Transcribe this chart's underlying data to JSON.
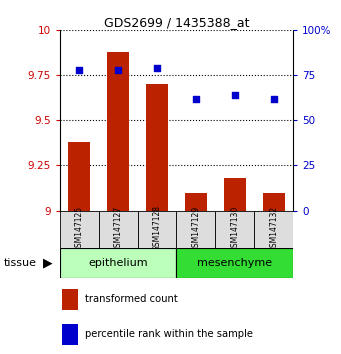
{
  "title": "GDS2699 / 1435388_at",
  "samples": [
    "GSM147125",
    "GSM147127",
    "GSM147128",
    "GSM147129",
    "GSM147130",
    "GSM147132"
  ],
  "bar_values": [
    9.38,
    9.88,
    9.7,
    9.1,
    9.18,
    9.1
  ],
  "scatter_values": [
    78,
    78,
    79,
    62,
    64,
    62
  ],
  "ylim_left": [
    9.0,
    10.0
  ],
  "ylim_right": [
    0,
    100
  ],
  "yticks_left": [
    9.0,
    9.25,
    9.5,
    9.75,
    10.0
  ],
  "yticks_right": [
    0,
    25,
    50,
    75,
    100
  ],
  "bar_color": "#bb2200",
  "scatter_color": "#0000cc",
  "bar_width": 0.55,
  "groups": [
    {
      "label": "epithelium",
      "count": 3,
      "color": "#bbffbb"
    },
    {
      "label": "mesenchyme",
      "count": 3,
      "color": "#33dd33"
    }
  ],
  "tissue_label": "tissue",
  "legend_bar_label": "transformed count",
  "legend_scatter_label": "percentile rank within the sample",
  "grid_color": "black",
  "tick_color_left": "#cc0000",
  "tick_color_right": "#0000cc"
}
